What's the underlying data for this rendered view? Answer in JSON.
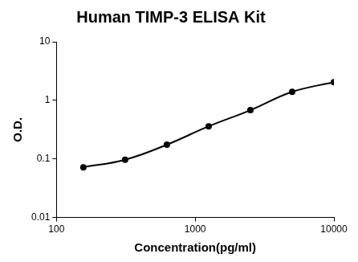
{
  "chart_data": {
    "type": "line",
    "title": "Human TIMP-3 ELISA Kit",
    "x_label": "Concentration(pg/ml)",
    "y_label": "O.D.",
    "x": [
      156.25,
      312.5,
      625,
      1250,
      2500,
      5000,
      10000
    ],
    "values": [
      0.072,
      0.097,
      0.175,
      0.36,
      0.68,
      1.4,
      2.05
    ],
    "color": "#000000",
    "marker": "circle",
    "line_style": "solid",
    "log": true,
    "grid": false,
    "xlim": [
      100,
      10000
    ],
    "xticks": [
      100,
      1000,
      10000
    ],
    "ylim": [
      0.01,
      10
    ],
    "yticks": [
      0.01,
      0.1,
      1,
      10
    ]
  }
}
